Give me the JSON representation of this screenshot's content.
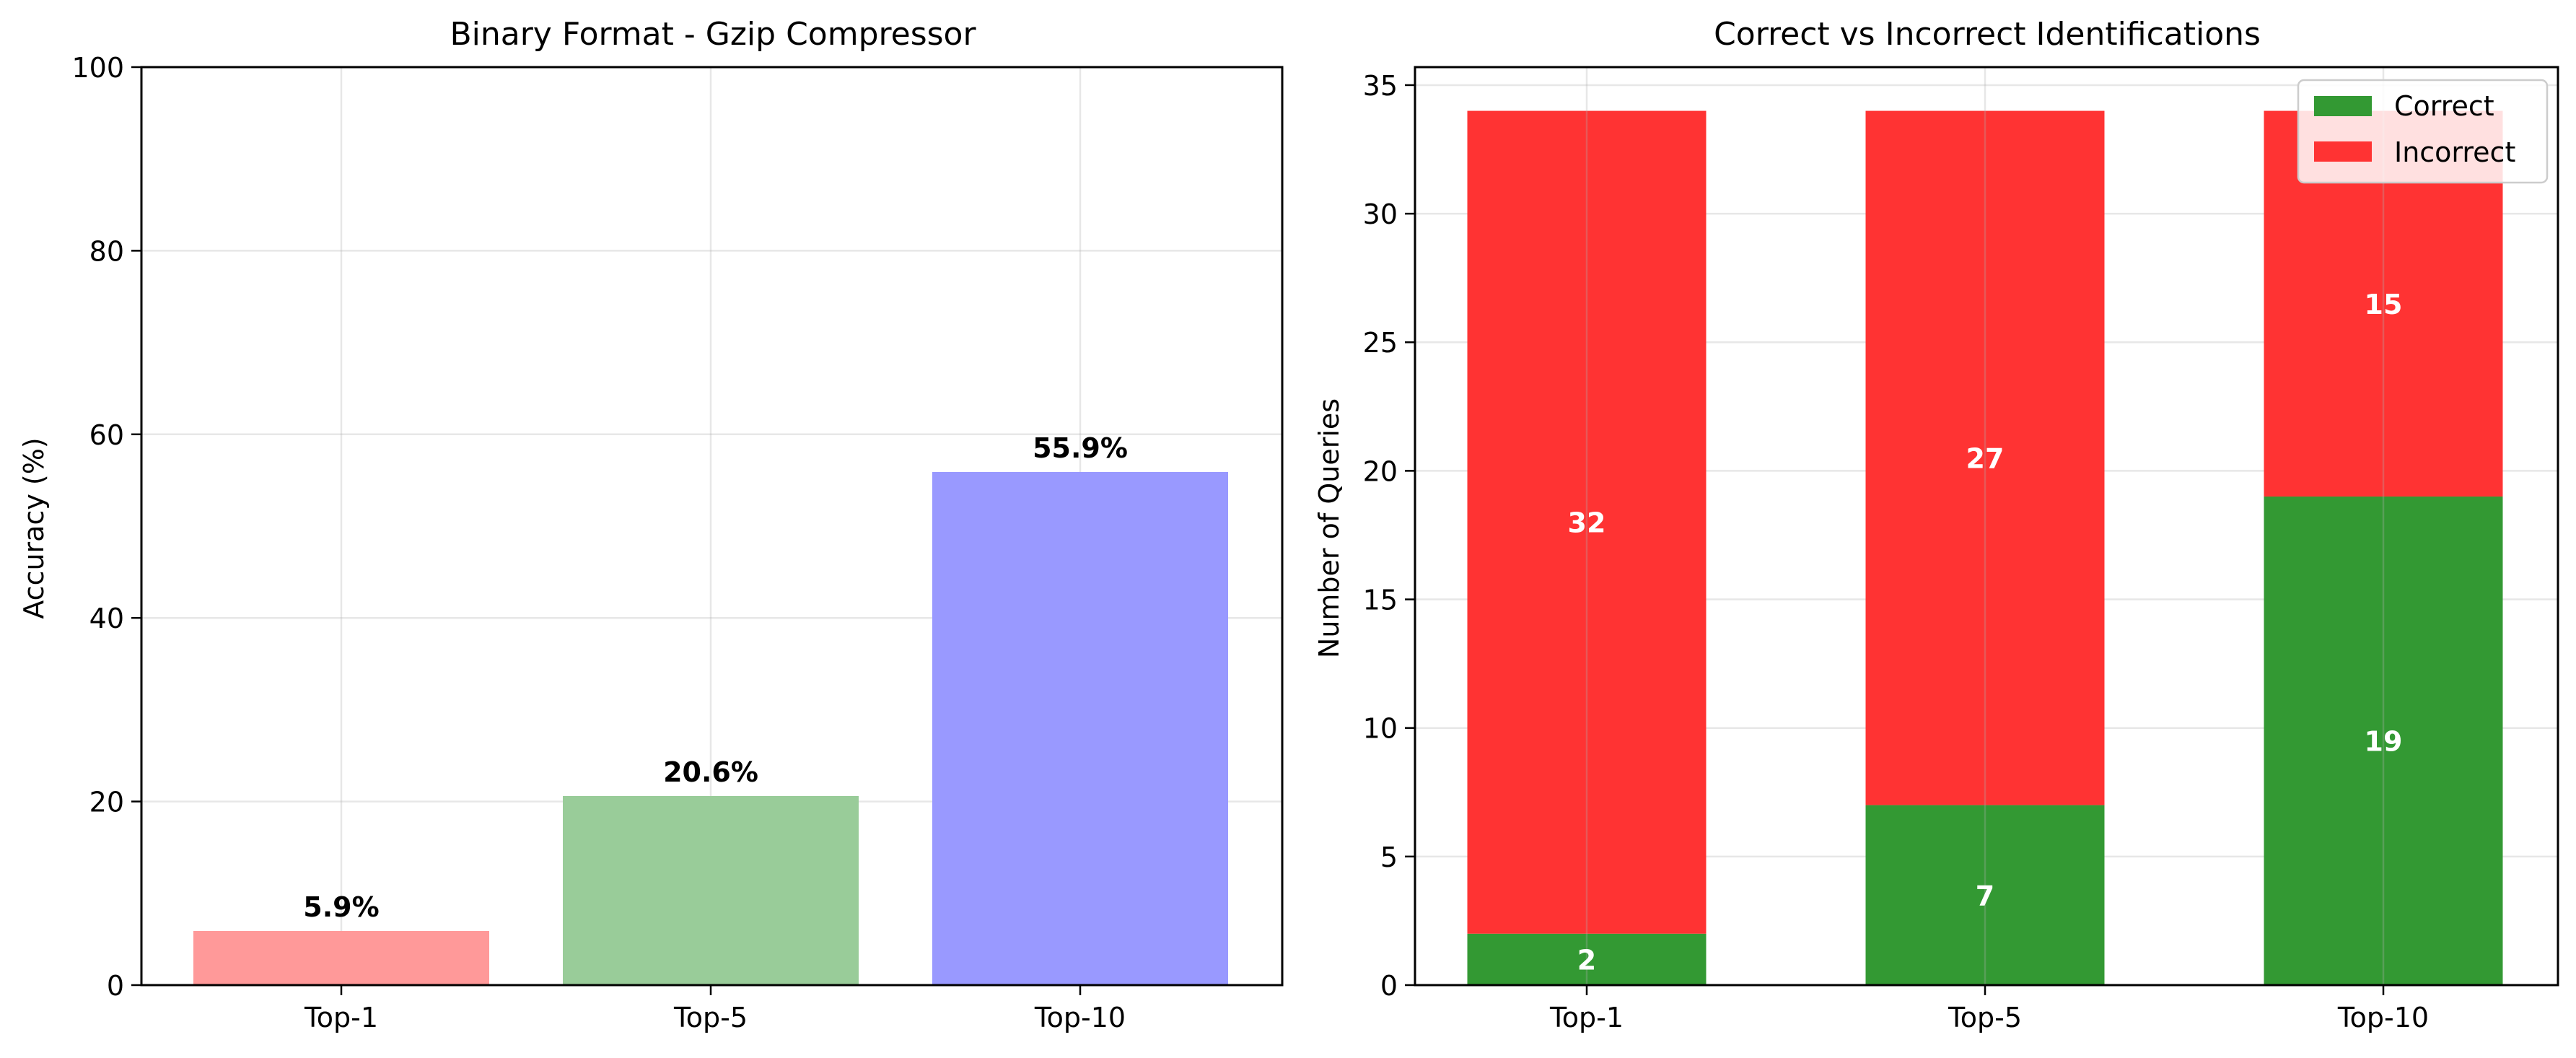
{
  "chart_data": [
    {
      "type": "bar",
      "title": "Binary Format - Gzip Compressor",
      "xlabel": "",
      "ylabel": "Accuracy (%)",
      "ylim": [
        0,
        100
      ],
      "yticks": [
        0,
        20,
        40,
        60,
        80,
        100
      ],
      "grid": true,
      "categories": [
        "Top-1",
        "Top-5",
        "Top-10"
      ],
      "values": [
        5.9,
        20.6,
        55.9
      ],
      "data_labels": [
        "5.9%",
        "20.6%",
        "55.9%"
      ],
      "colors": [
        "#ff9999",
        "#99cc99",
        "#9999ff"
      ]
    },
    {
      "type": "bar",
      "stacked": true,
      "title": "Correct vs Incorrect Identifications",
      "xlabel": "",
      "ylabel": "Number of Queries",
      "ylim": [
        0,
        35.7
      ],
      "yticks": [
        0,
        5,
        10,
        15,
        20,
        25,
        30,
        35
      ],
      "grid": true,
      "legend_position": "top-right",
      "categories": [
        "Top-1",
        "Top-5",
        "Top-10"
      ],
      "series": [
        {
          "name": "Correct",
          "values": [
            2,
            7,
            19
          ],
          "color": "#339933"
        },
        {
          "name": "Incorrect",
          "values": [
            32,
            27,
            15
          ],
          "color": "#ff3333"
        }
      ]
    }
  ]
}
